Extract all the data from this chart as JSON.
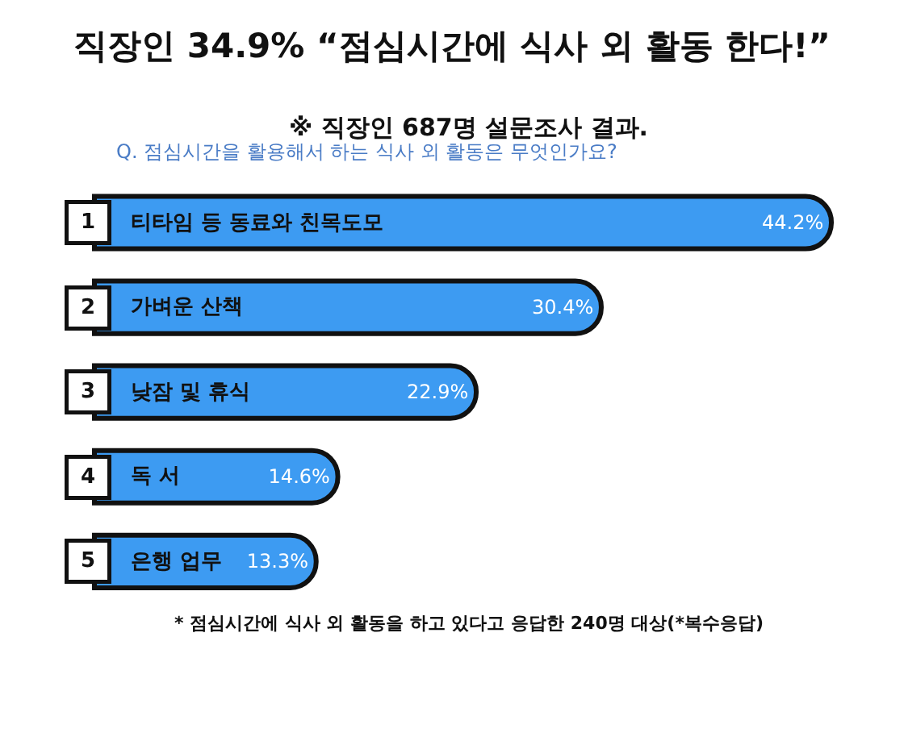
{
  "chart_data": {
    "type": "bar",
    "orientation": "horizontal",
    "title": "직장인 34.9% “점심시간에 식사 외 활동 한다!”",
    "subtitle": "※ 직장인 687명 설문조사 결과.",
    "categories": [
      "티타임 등 동료와 친목도모",
      "가벼운 산책",
      "낮잠 및 휴식",
      "독 서",
      "은행 업무"
    ],
    "values": [
      44.2,
      30.4,
      22.9,
      14.6,
      13.3
    ],
    "value_labels": [
      "44.2%",
      "30.4%",
      "22.9%",
      "14.6%",
      "13.3%"
    ],
    "color": "#3d9bf2",
    "tick_labels": false,
    "annotations": [
      "Q. 점심시간을 활용해서 하는 식사 외 활동은 무엇인가요?",
      "1",
      "2",
      "3",
      "4",
      "5",
      "* 점심시간에 식사 외 활동을 하고 있다고 응답한 240명 대상(*복수응답)"
    ]
  }
}
